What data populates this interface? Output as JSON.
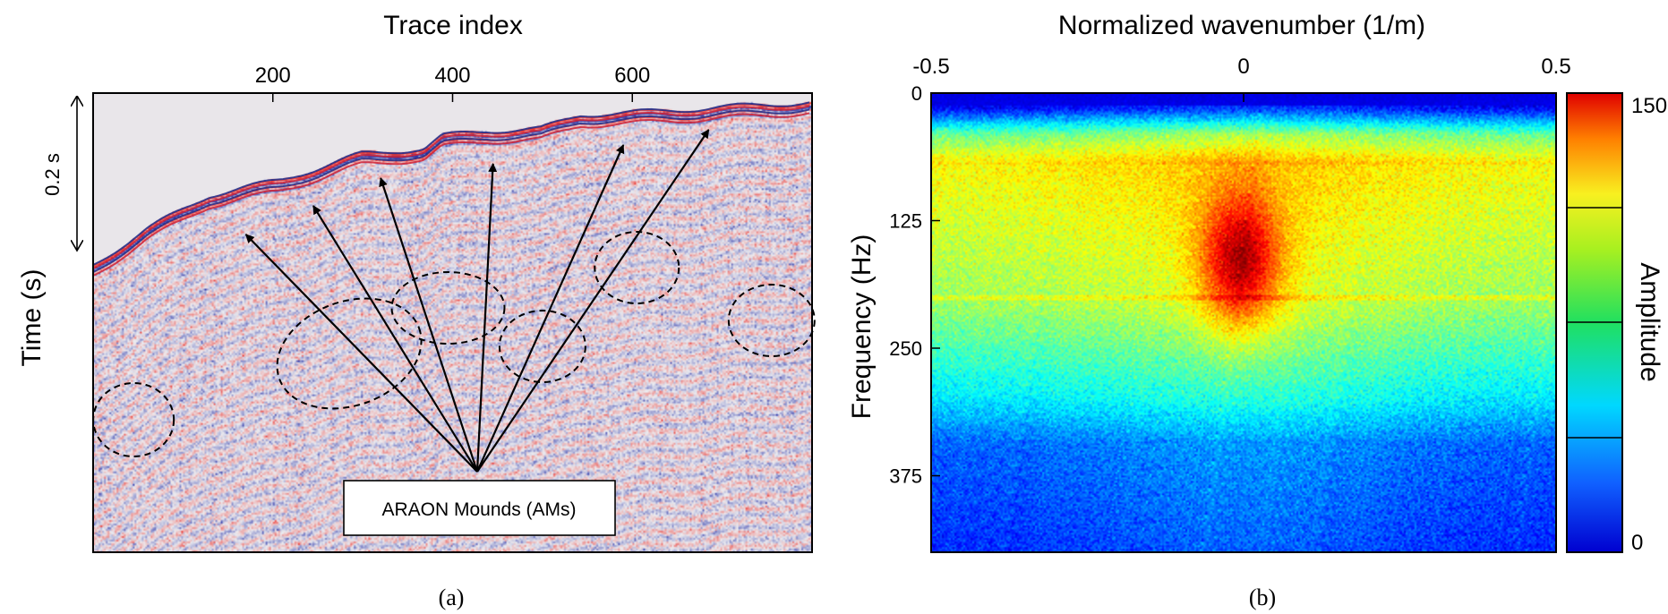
{
  "chart_data": [
    {
      "type": "heatmap",
      "panel_label": "(a)",
      "top_axis_label": "Trace index",
      "y_axis_label": "Time (s)",
      "x_ticks": [
        "200",
        "400",
        "600"
      ],
      "x_tick_values": [
        200,
        400,
        600
      ],
      "x_range": [
        0,
        800
      ],
      "scale_bar_label": "0.2 s",
      "annotation_box": "ARAON Mounds (AMs)",
      "colors": {
        "positive": "#e0303c",
        "negative": "#2f3fb0",
        "background": "#e9e6ea"
      },
      "arrow_targets_trace": [
        170,
        245,
        320,
        445,
        590,
        685
      ],
      "circled_features_trace": [
        45,
        285,
        395,
        500,
        605,
        755
      ]
    },
    {
      "type": "heatmap",
      "panel_label": "(b)",
      "top_axis_label": "Normalized wavenumber (1/m)",
      "y_axis_label": "Frequency (Hz)",
      "x_ticks": [
        "-0.5",
        "0",
        "0.5"
      ],
      "x_tick_values": [
        -0.5,
        0,
        0.5
      ],
      "x_range": [
        -0.5,
        0.5
      ],
      "y_ticks": [
        "0",
        "125",
        "250",
        "375"
      ],
      "y_tick_values": [
        0,
        125,
        250,
        375
      ],
      "y_range": [
        0,
        450
      ],
      "colorbar": {
        "label": "Amplitude",
        "min_label": "0",
        "max_label": "150",
        "min": 0,
        "max": 150,
        "colormap": "jet"
      },
      "peak": {
        "wavenumber": 0.0,
        "frequency_hz": 160,
        "amplitude": 150
      }
    }
  ]
}
